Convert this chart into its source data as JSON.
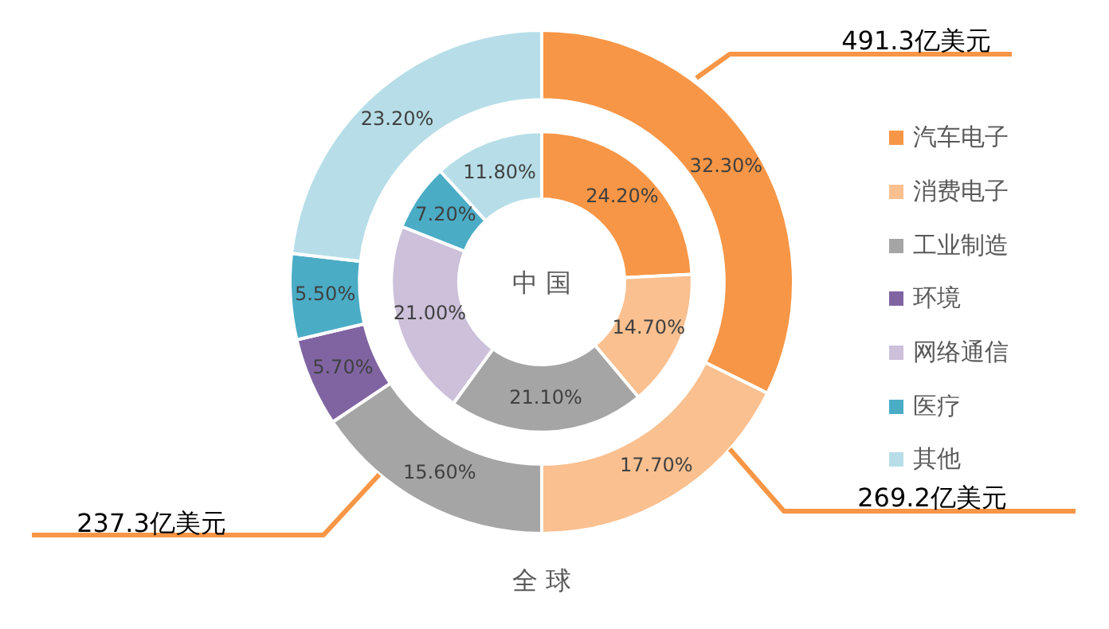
{
  "chart_data": {
    "type": "donut",
    "categories": [
      "汽车电子",
      "消费电子",
      "工业制造",
      "环境",
      "网络通信",
      "医疗",
      "其他"
    ],
    "colors": [
      "#f79646",
      "#fac090",
      "#a5a5a5",
      "#8064a2",
      "#ccc0da",
      "#4bacc6",
      "#b7dee8"
    ],
    "series": [
      {
        "name": "全球",
        "values": [
          32.3,
          17.7,
          15.6,
          5.7,
          null,
          5.5,
          23.2
        ],
        "value_labels": [
          "32.30%",
          "17.70%",
          "15.60%",
          "5.70%",
          null,
          "5.50%",
          "23.20%"
        ]
      },
      {
        "name": "中国",
        "values": [
          24.2,
          14.7,
          21.1,
          null,
          21.0,
          7.2,
          11.8
        ],
        "value_labels": [
          "24.20%",
          "14.70%",
          "21.10%",
          null,
          "21.00%",
          "7.20%",
          "11.80%"
        ]
      }
    ],
    "annotations": [
      "491.3亿美元",
      "269.2亿美元",
      "237.3亿美元"
    ],
    "legend": "right"
  }
}
